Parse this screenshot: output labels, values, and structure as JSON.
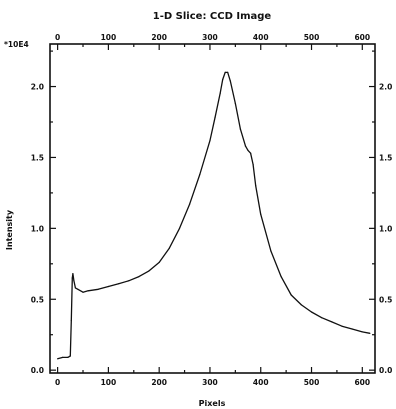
{
  "chart_data": {
    "type": "line",
    "title": "1-D Slice: CCD Image",
    "xlabel": "Pixels",
    "ylabel": "Intensity",
    "y_exponent_label": "*10E4",
    "xlim": [
      -15,
      625
    ],
    "ylim": [
      -0.02,
      2.3
    ],
    "x_ticks_bottom": [
      0,
      100,
      200,
      300,
      400,
      500,
      600
    ],
    "x_tick_labels_bottom": [
      "0",
      "100",
      "200",
      "300",
      "400",
      "500",
      "600"
    ],
    "x_ticks_top": [
      0,
      100,
      200,
      300,
      400,
      500,
      600
    ],
    "x_tick_labels_top": [
      "0",
      "100",
      "200",
      "300",
      "400",
      "500",
      "600"
    ],
    "y_ticks": [
      0.0,
      0.5,
      1.0,
      1.5,
      2.0
    ],
    "y_tick_labels": [
      "0.0",
      "0.5",
      "1.0",
      "1.5",
      "2.0"
    ],
    "grid": false,
    "series": [
      {
        "x": [
          0,
          10,
          20,
          25,
          27,
          29,
          30,
          32,
          35,
          40,
          50,
          60,
          80,
          100,
          120,
          140,
          160,
          180,
          200,
          220,
          240,
          260,
          280,
          300,
          310,
          320,
          325,
          330,
          335,
          340,
          350,
          360,
          370,
          375,
          380,
          385,
          390,
          400,
          420,
          440,
          460,
          480,
          500,
          520,
          540,
          560,
          580,
          600,
          615
        ],
        "y": [
          0.08,
          0.09,
          0.09,
          0.1,
          0.35,
          0.65,
          0.68,
          0.63,
          0.58,
          0.57,
          0.55,
          0.56,
          0.57,
          0.59,
          0.61,
          0.63,
          0.66,
          0.7,
          0.76,
          0.86,
          1.0,
          1.17,
          1.38,
          1.62,
          1.78,
          1.95,
          2.05,
          2.1,
          2.1,
          2.04,
          1.88,
          1.7,
          1.58,
          1.55,
          1.53,
          1.45,
          1.3,
          1.1,
          0.84,
          0.66,
          0.53,
          0.46,
          0.41,
          0.37,
          0.34,
          0.31,
          0.29,
          0.27,
          0.26
        ]
      }
    ],
    "colors": {
      "line": "#111111",
      "axes": "#111111",
      "background": "#ffffff"
    }
  }
}
